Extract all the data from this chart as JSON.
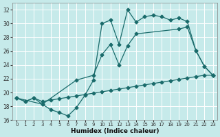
{
  "xlabel": "Humidex (Indice chaleur)",
  "bg_color": "#c6eaea",
  "grid_color": "#ffffff",
  "line_color": "#1a6b6b",
  "xlim": [
    -0.5,
    23.5
  ],
  "ylim": [
    16,
    33
  ],
  "yticks": [
    16,
    18,
    20,
    22,
    24,
    26,
    28,
    30,
    32
  ],
  "xticks": [
    0,
    1,
    2,
    3,
    4,
    5,
    6,
    7,
    8,
    9,
    10,
    11,
    12,
    13,
    14,
    15,
    16,
    17,
    18,
    19,
    20,
    21,
    22,
    23
  ],
  "line1_x": [
    0,
    1,
    2,
    3,
    4,
    5,
    6,
    7,
    8,
    9,
    10,
    11,
    12,
    13,
    14,
    15,
    16,
    17,
    18,
    19,
    20,
    21,
    22,
    23
  ],
  "line1_y": [
    19.2,
    18.7,
    19.2,
    18.3,
    17.5,
    17.1,
    16.6,
    17.8,
    19.6,
    21.8,
    30.0,
    30.5,
    27.0,
    32.0,
    30.2,
    31.0,
    31.2,
    31.0,
    30.5,
    30.8,
    30.3,
    26.1,
    23.8,
    22.5
  ],
  "line2_x": [
    0,
    3,
    7,
    9,
    10,
    11,
    12,
    13,
    14,
    19,
    20,
    21,
    22,
    23
  ],
  "line2_y": [
    19.2,
    18.3,
    21.8,
    22.5,
    25.5,
    27.0,
    24.0,
    26.8,
    28.5,
    29.2,
    29.5,
    26.1,
    23.8,
    22.5
  ],
  "line3_x": [
    0,
    1,
    2,
    3,
    4,
    5,
    6,
    7,
    8,
    9,
    10,
    11,
    12,
    13,
    14,
    15,
    16,
    17,
    18,
    19,
    20,
    21,
    22,
    23
  ],
  "line3_y": [
    19.2,
    18.7,
    19.2,
    18.7,
    18.9,
    19.1,
    19.3,
    19.5,
    19.7,
    19.9,
    20.1,
    20.3,
    20.5,
    20.7,
    20.9,
    21.1,
    21.3,
    21.5,
    21.7,
    21.9,
    22.1,
    22.3,
    22.5,
    22.5
  ],
  "marker_size": 2.5,
  "line_width": 0.9
}
